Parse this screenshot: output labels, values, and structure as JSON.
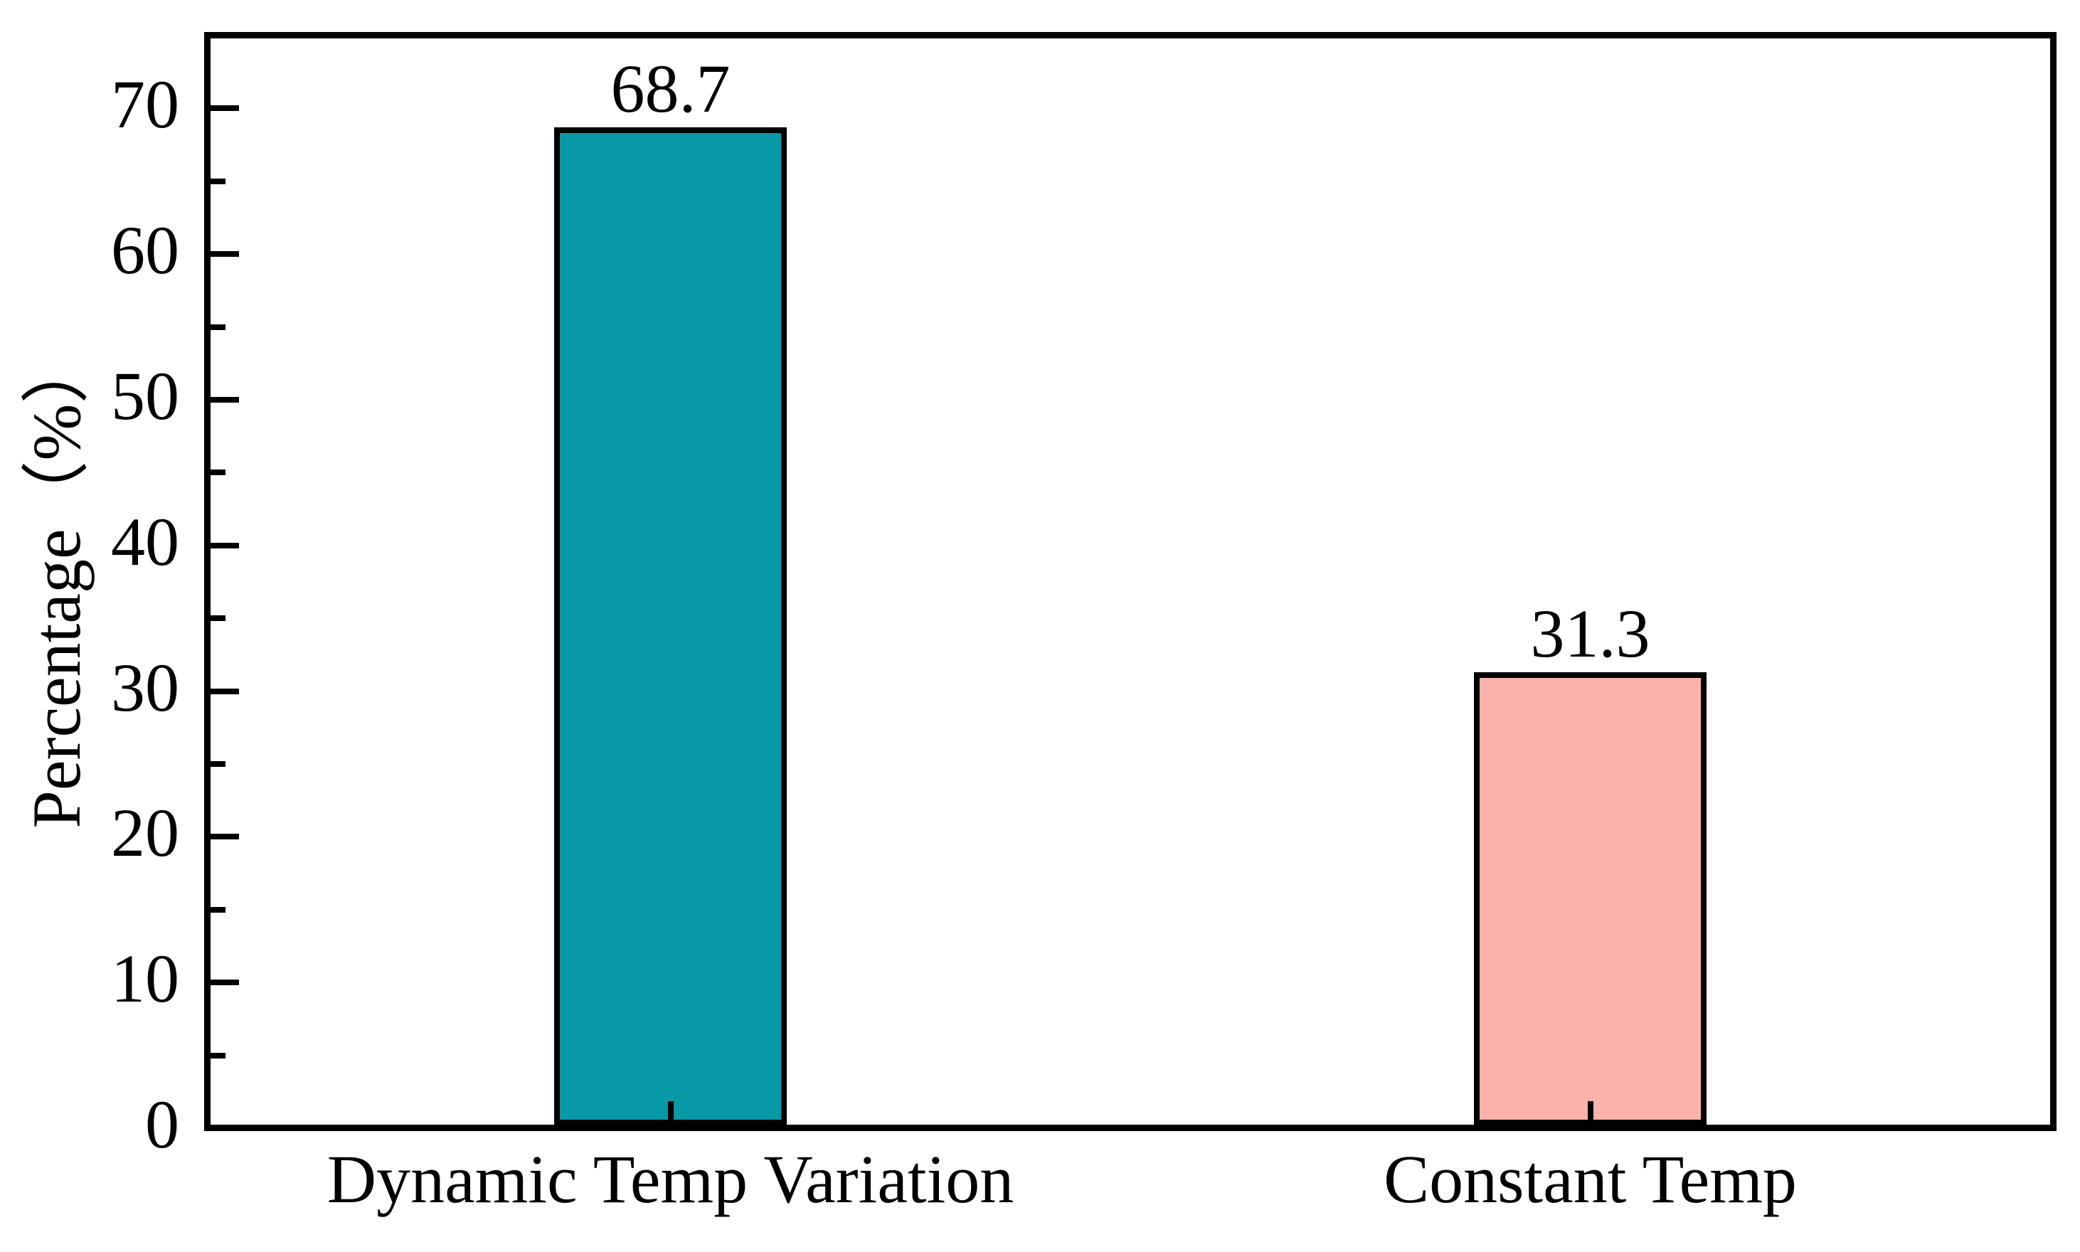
{
  "chart_data": {
    "type": "bar",
    "title": "",
    "categories": [
      "Dynamic Temp Variation",
      "Constant Temp"
    ],
    "values": [
      68.7,
      31.3
    ],
    "value_labels": [
      "68.7",
      "31.3"
    ],
    "series_colors": [
      "#0899A6",
      "#FBB2AA"
    ],
    "bar_edge_color": "#000000",
    "xlabel": "",
    "ylabel": "Percentage（%）",
    "ylim": [
      0,
      75
    ],
    "ytick_major": [
      0,
      10,
      20,
      30,
      40,
      50,
      60,
      70
    ],
    "ytick_minor": [
      5,
      15,
      25,
      35,
      45,
      55,
      65
    ],
    "ytick_labels": [
      "0",
      "10",
      "20",
      "30",
      "40",
      "50",
      "60",
      "70"
    ],
    "grid": false,
    "legend": "none",
    "axis_color": "#000000",
    "background_color": "#FFFFFF",
    "tick_direction": "in"
  }
}
